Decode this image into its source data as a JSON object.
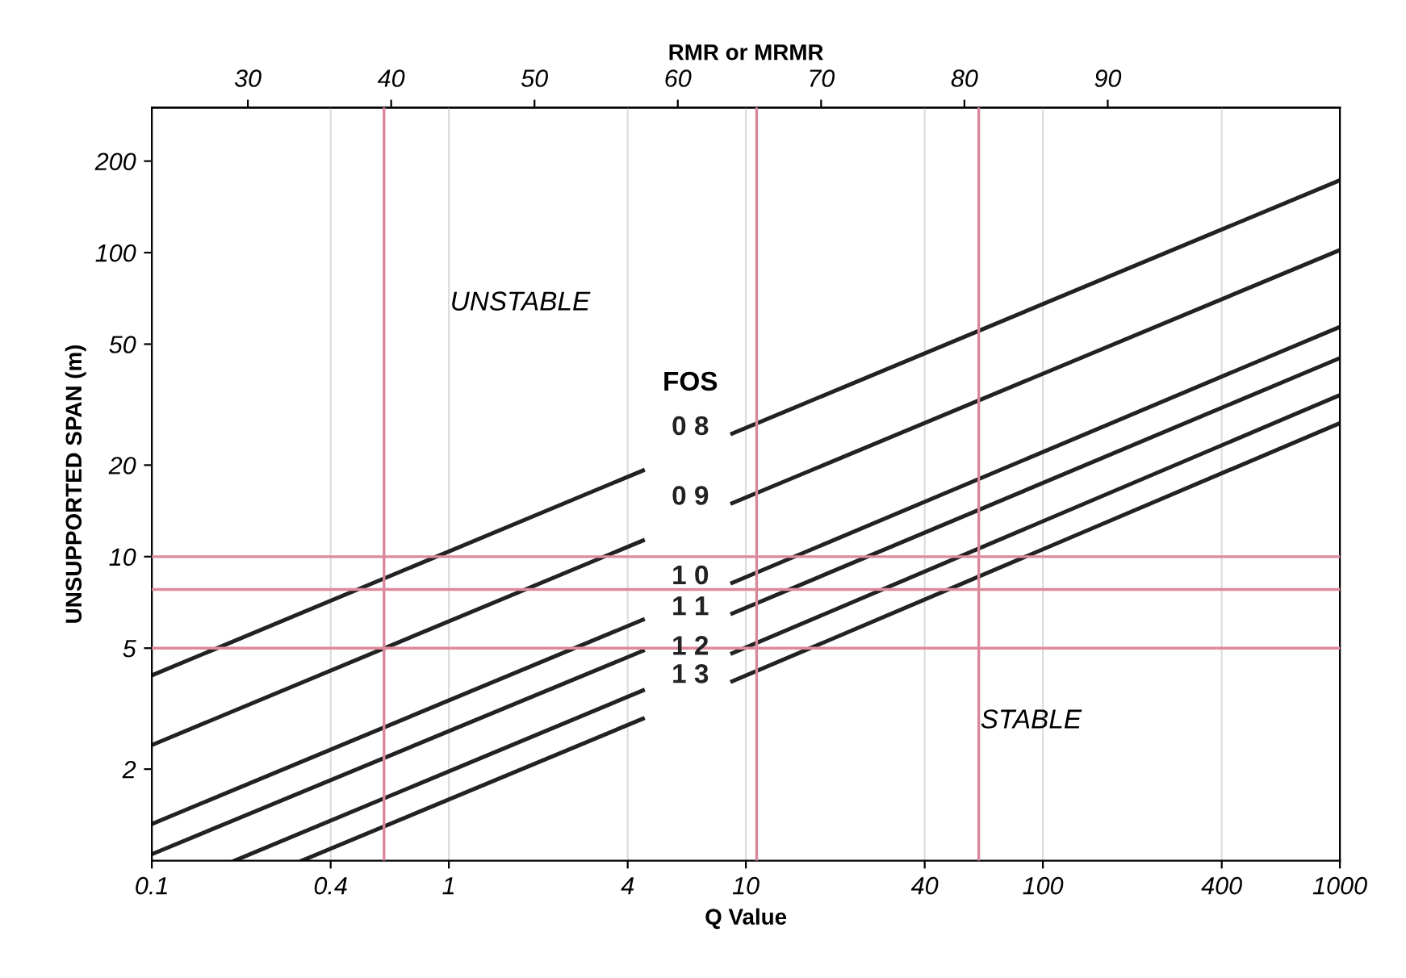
{
  "chart_data": {
    "type": "line",
    "xlabel": "Q Value",
    "ylabel": "UNSUPPORTED SPAN (m)",
    "x2label": "RMR or MRMR",
    "log": "xy",
    "xlim": [
      0.1,
      1000
    ],
    "ylim": [
      1,
      300
    ],
    "xticks": [
      0.1,
      0.4,
      1,
      4,
      10,
      40,
      100,
      400,
      1000
    ],
    "yticks": [
      2,
      5,
      10,
      20,
      50,
      100,
      200
    ],
    "x2lim": [
      23.3,
      106.2
    ],
    "x2ticks": [
      30,
      40,
      50,
      60,
      70,
      80,
      90
    ],
    "grid": "x",
    "legend": false,
    "legend_title": "FOS",
    "marker": "none",
    "line_style": "solid",
    "series": [
      {
        "name": "0 8",
        "color": "#222222",
        "x": [
          0.1,
          4.5,
          6.5,
          9,
          1000
        ],
        "values": [
          4.07,
          19.2,
          null,
          25.4,
          173
        ]
      },
      {
        "name": "0 9",
        "color": "#222222",
        "x": [
          0.1,
          4.5,
          6.5,
          9,
          1000
        ],
        "values": [
          2.4,
          11.3,
          null,
          15.0,
          102
        ]
      },
      {
        "name": "1 0",
        "color": "#222222",
        "x": [
          0.1,
          4.5,
          6.5,
          9,
          1000
        ],
        "values": [
          1.32,
          6.2,
          null,
          8.2,
          57
        ]
      },
      {
        "name": "1 1",
        "color": "#222222",
        "x": [
          0.1,
          4.5,
          6.5,
          9,
          1000
        ],
        "values": [
          1.05,
          4.9,
          null,
          6.5,
          45
        ]
      },
      {
        "name": "1 2",
        "color": "#222222",
        "x": [
          0.19,
          4.5,
          6.5,
          9,
          1000
        ],
        "values": [
          1.0,
          3.63,
          null,
          4.81,
          34
        ]
      },
      {
        "name": "1 3",
        "color": "#222222",
        "x": [
          0.32,
          4.5,
          6.5,
          9,
          1000
        ],
        "values": [
          1.0,
          2.93,
          null,
          3.89,
          27.5
        ]
      }
    ],
    "ref_lines": [
      {
        "axis": "x2",
        "value": 39.5,
        "color": "#d9869a"
      },
      {
        "axis": "x2",
        "value": 65.5,
        "color": "#d9869a"
      },
      {
        "axis": "x2",
        "value": 81,
        "color": "#d9869a"
      },
      {
        "axis": "y",
        "value": 10,
        "color": "#dc8a9b"
      },
      {
        "axis": "y",
        "value": 7.8,
        "color": "#dc8a9b"
      },
      {
        "axis": "y",
        "value": 5,
        "color": "#dc8a9b"
      }
    ],
    "annotations": [
      "UNSTABLE",
      "STABLE"
    ]
  }
}
